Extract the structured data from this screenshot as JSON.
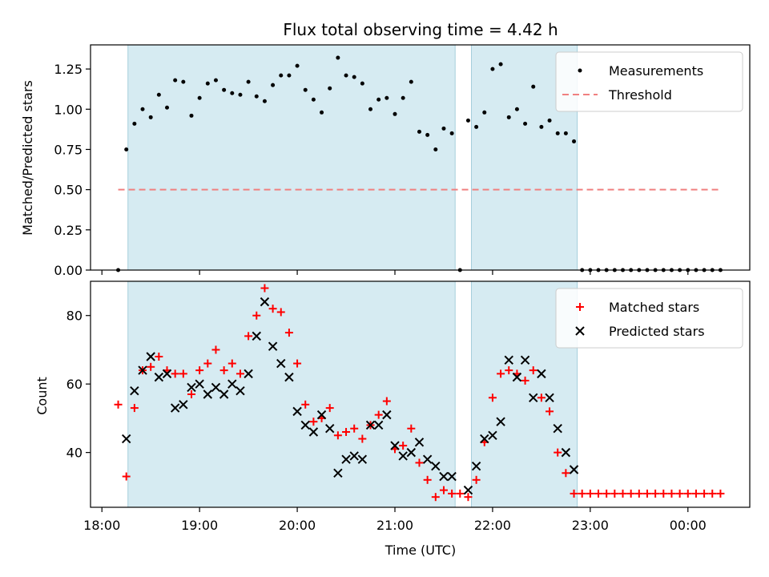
{
  "chart_data": [
    {
      "type": "scatter",
      "title": "Flux total observing time = 4.42 h",
      "xlabel": "",
      "ylabel": "Matched/Predicted stars",
      "ylim": [
        0,
        1.4
      ],
      "yticks": [
        0.0,
        0.25,
        0.5,
        0.75,
        1.0,
        1.25
      ],
      "ytick_labels": [
        "0.00",
        "0.25",
        "0.50",
        "0.75",
        "1.00",
        "1.25"
      ],
      "xlim": [
        "17:53",
        "00:38"
      ],
      "xticks": [
        "18:00",
        "19:00",
        "20:00",
        "21:00",
        "22:00",
        "23:00",
        "00:00"
      ],
      "grid": false,
      "legend": "top-right",
      "shaded_intervals": [
        [
          "18:16",
          "21:37"
        ],
        [
          "21:47",
          "22:52"
        ]
      ],
      "threshold": {
        "name": "Threshold",
        "value": 0.5,
        "x_range": [
          "18:10",
          "00:20"
        ],
        "color": "#f08080",
        "style": "dashed"
      },
      "series": [
        {
          "name": "Measurements",
          "marker": "dot",
          "color": "#000000",
          "points": [
            [
              "18:10",
              0.0
            ],
            [
              "18:15",
              0.75
            ],
            [
              "18:20",
              0.91
            ],
            [
              "18:25",
              1.0
            ],
            [
              "18:30",
              0.95
            ],
            [
              "18:35",
              1.09
            ],
            [
              "18:40",
              1.01
            ],
            [
              "18:45",
              1.18
            ],
            [
              "18:50",
              1.17
            ],
            [
              "18:55",
              0.96
            ],
            [
              "19:00",
              1.07
            ],
            [
              "19:05",
              1.16
            ],
            [
              "19:10",
              1.18
            ],
            [
              "19:15",
              1.12
            ],
            [
              "19:20",
              1.1
            ],
            [
              "19:25",
              1.09
            ],
            [
              "19:30",
              1.17
            ],
            [
              "19:35",
              1.08
            ],
            [
              "19:40",
              1.05
            ],
            [
              "19:45",
              1.15
            ],
            [
              "19:50",
              1.21
            ],
            [
              "19:55",
              1.21
            ],
            [
              "20:00",
              1.27
            ],
            [
              "20:05",
              1.12
            ],
            [
              "20:10",
              1.06
            ],
            [
              "20:15",
              0.98
            ],
            [
              "20:20",
              1.13
            ],
            [
              "20:25",
              1.32
            ],
            [
              "20:30",
              1.21
            ],
            [
              "20:35",
              1.2
            ],
            [
              "20:40",
              1.16
            ],
            [
              "20:45",
              1.0
            ],
            [
              "20:50",
              1.06
            ],
            [
              "20:55",
              1.07
            ],
            [
              "21:00",
              0.97
            ],
            [
              "21:05",
              1.07
            ],
            [
              "21:10",
              1.17
            ],
            [
              "21:15",
              0.86
            ],
            [
              "21:20",
              0.84
            ],
            [
              "21:25",
              0.75
            ],
            [
              "21:30",
              0.88
            ],
            [
              "21:35",
              0.85
            ],
            [
              "21:40",
              0.0
            ],
            [
              "21:45",
              0.93
            ],
            [
              "21:50",
              0.89
            ],
            [
              "21:55",
              0.98
            ],
            [
              "22:00",
              1.25
            ],
            [
              "22:05",
              1.28
            ],
            [
              "22:10",
              0.95
            ],
            [
              "22:15",
              1.0
            ],
            [
              "22:20",
              0.91
            ],
            [
              "22:25",
              1.14
            ],
            [
              "22:30",
              0.89
            ],
            [
              "22:35",
              0.93
            ],
            [
              "22:40",
              0.85
            ],
            [
              "22:45",
              0.85
            ],
            [
              "22:50",
              0.8
            ],
            [
              "22:55",
              0.0
            ],
            [
              "23:00",
              0.0
            ],
            [
              "23:05",
              0.0
            ],
            [
              "23:10",
              0.0
            ],
            [
              "23:15",
              0.0
            ],
            [
              "23:20",
              0.0
            ],
            [
              "23:25",
              0.0
            ],
            [
              "23:30",
              0.0
            ],
            [
              "23:35",
              0.0
            ],
            [
              "23:40",
              0.0
            ],
            [
              "23:45",
              0.0
            ],
            [
              "23:50",
              0.0
            ],
            [
              "23:55",
              0.0
            ],
            [
              "00:00",
              0.0
            ],
            [
              "00:05",
              0.0
            ],
            [
              "00:10",
              0.0
            ],
            [
              "00:15",
              0.0
            ],
            [
              "00:20",
              0.0
            ]
          ]
        }
      ]
    },
    {
      "type": "scatter",
      "title": "",
      "xlabel": "Time (UTC)",
      "ylabel": "Count",
      "ylim": [
        24,
        90
      ],
      "yticks": [
        40,
        60,
        80
      ],
      "ytick_labels": [
        "40",
        "60",
        "80"
      ],
      "xlim": [
        "17:53",
        "00:38"
      ],
      "xticks": [
        "18:00",
        "19:00",
        "20:00",
        "21:00",
        "22:00",
        "23:00",
        "00:00"
      ],
      "xtick_labels": [
        "18:00",
        "19:00",
        "20:00",
        "21:00",
        "22:00",
        "23:00",
        "00:00"
      ],
      "grid": false,
      "legend": "top-right",
      "shaded_intervals": [
        [
          "18:16",
          "21:37"
        ],
        [
          "21:47",
          "22:52"
        ]
      ],
      "series": [
        {
          "name": "Matched stars",
          "marker": "plus",
          "color": "#ff0000",
          "points": [
            [
              "18:10",
              54
            ],
            [
              "18:15",
              33
            ],
            [
              "18:20",
              53
            ],
            [
              "18:25",
              64
            ],
            [
              "18:30",
              65
            ],
            [
              "18:35",
              68
            ],
            [
              "18:40",
              64
            ],
            [
              "18:45",
              63
            ],
            [
              "18:50",
              63
            ],
            [
              "18:55",
              57
            ],
            [
              "19:00",
              64
            ],
            [
              "19:05",
              66
            ],
            [
              "19:10",
              70
            ],
            [
              "19:15",
              64
            ],
            [
              "19:20",
              66
            ],
            [
              "19:25",
              63
            ],
            [
              "19:30",
              74
            ],
            [
              "19:35",
              80
            ],
            [
              "19:40",
              88
            ],
            [
              "19:45",
              82
            ],
            [
              "19:50",
              81
            ],
            [
              "19:55",
              75
            ],
            [
              "20:00",
              66
            ],
            [
              "20:05",
              54
            ],
            [
              "20:10",
              49
            ],
            [
              "20:15",
              50
            ],
            [
              "20:20",
              53
            ],
            [
              "20:25",
              45
            ],
            [
              "20:30",
              46
            ],
            [
              "20:35",
              47
            ],
            [
              "20:40",
              44
            ],
            [
              "20:45",
              48
            ],
            [
              "20:50",
              51
            ],
            [
              "20:55",
              55
            ],
            [
              "21:00",
              41
            ],
            [
              "21:05",
              42
            ],
            [
              "21:10",
              47
            ],
            [
              "21:15",
              37
            ],
            [
              "21:20",
              32
            ],
            [
              "21:25",
              27
            ],
            [
              "21:30",
              29
            ],
            [
              "21:35",
              28
            ],
            [
              "21:40",
              28
            ],
            [
              "21:45",
              27
            ],
            [
              "21:50",
              32
            ],
            [
              "21:55",
              43
            ],
            [
              "22:00",
              56
            ],
            [
              "22:05",
              63
            ],
            [
              "22:10",
              64
            ],
            [
              "22:15",
              63
            ],
            [
              "22:20",
              61
            ],
            [
              "22:25",
              64
            ],
            [
              "22:30",
              56
            ],
            [
              "22:35",
              52
            ],
            [
              "22:40",
              40
            ],
            [
              "22:45",
              34
            ],
            [
              "22:50",
              28
            ],
            [
              "22:55",
              28
            ],
            [
              "23:00",
              28
            ],
            [
              "23:05",
              28
            ],
            [
              "23:10",
              28
            ],
            [
              "23:15",
              28
            ],
            [
              "23:20",
              28
            ],
            [
              "23:25",
              28
            ],
            [
              "23:30",
              28
            ],
            [
              "23:35",
              28
            ],
            [
              "23:40",
              28
            ],
            [
              "23:45",
              28
            ],
            [
              "23:50",
              28
            ],
            [
              "23:55",
              28
            ],
            [
              "00:00",
              28
            ],
            [
              "00:05",
              28
            ],
            [
              "00:10",
              28
            ],
            [
              "00:15",
              28
            ],
            [
              "00:20",
              28
            ]
          ]
        },
        {
          "name": "Predicted stars",
          "marker": "x",
          "color": "#000000",
          "points": [
            [
              "18:15",
              44
            ],
            [
              "18:20",
              58
            ],
            [
              "18:25",
              64
            ],
            [
              "18:30",
              68
            ],
            [
              "18:35",
              62
            ],
            [
              "18:40",
              63
            ],
            [
              "18:45",
              53
            ],
            [
              "18:50",
              54
            ],
            [
              "18:55",
              59
            ],
            [
              "19:00",
              60
            ],
            [
              "19:05",
              57
            ],
            [
              "19:10",
              59
            ],
            [
              "19:15",
              57
            ],
            [
              "19:20",
              60
            ],
            [
              "19:25",
              58
            ],
            [
              "19:30",
              63
            ],
            [
              "19:35",
              74
            ],
            [
              "19:40",
              84
            ],
            [
              "19:45",
              71
            ],
            [
              "19:50",
              66
            ],
            [
              "19:55",
              62
            ],
            [
              "20:00",
              52
            ],
            [
              "20:05",
              48
            ],
            [
              "20:10",
              46
            ],
            [
              "20:15",
              51
            ],
            [
              "20:20",
              47
            ],
            [
              "20:25",
              34
            ],
            [
              "20:30",
              38
            ],
            [
              "20:35",
              39
            ],
            [
              "20:40",
              38
            ],
            [
              "20:45",
              48
            ],
            [
              "20:50",
              48
            ],
            [
              "20:55",
              51
            ],
            [
              "21:00",
              42
            ],
            [
              "21:05",
              39
            ],
            [
              "21:10",
              40
            ],
            [
              "21:15",
              43
            ],
            [
              "21:20",
              38
            ],
            [
              "21:25",
              36
            ],
            [
              "21:30",
              33
            ],
            [
              "21:35",
              33
            ],
            [
              "21:45",
              29
            ],
            [
              "21:50",
              36
            ],
            [
              "21:55",
              44
            ],
            [
              "22:00",
              45
            ],
            [
              "22:05",
              49
            ],
            [
              "22:10",
              67
            ],
            [
              "22:15",
              62
            ],
            [
              "22:20",
              67
            ],
            [
              "22:25",
              56
            ],
            [
              "22:30",
              63
            ],
            [
              "22:35",
              56
            ],
            [
              "22:40",
              47
            ],
            [
              "22:45",
              40
            ],
            [
              "22:50",
              35
            ]
          ]
        }
      ]
    }
  ]
}
